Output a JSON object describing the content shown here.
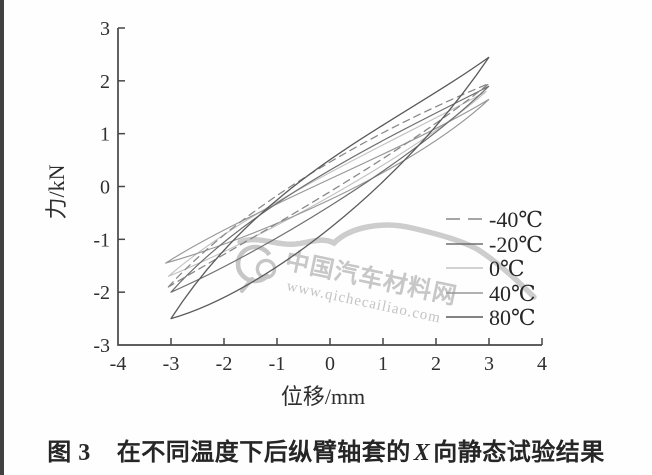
{
  "caption": {
    "figure_label": "图 3",
    "text_before_italic": "在不同温度下后纵臂轴套的",
    "italic_term": "X",
    "text_after_italic": "向静态试验结果"
  },
  "watermark": {
    "site_name": "中国汽车材料网",
    "site_url": "www.qichecailiao.com",
    "color": "#c9c9c9"
  },
  "chart_data": {
    "type": "line",
    "subtype": "hysteresis-loops",
    "title": "",
    "xlabel": "位移/mm",
    "ylabel": "力/kN",
    "xlim": [
      -4,
      4
    ],
    "ylim": [
      -3,
      3
    ],
    "x_ticks": [
      -4,
      -3,
      -2,
      -1,
      0,
      1,
      2,
      3,
      4
    ],
    "y_ticks": [
      3,
      2,
      1,
      0,
      -1,
      -2,
      -3
    ],
    "grid": false,
    "legend_position": "inside-lower-right",
    "axis_color": "#474747",
    "tick_text_color": "#2f2f2f",
    "series": [
      {
        "label": "-40℃",
        "line_style": "dashed",
        "color": "#878787",
        "width": 1.25,
        "max_force_kN": 1.95,
        "min_force_kN": -1.9,
        "displacement_range_mm": [
          -3.05,
          3.0
        ],
        "upper_bezier": [
          [
            -3.05,
            -1.9
          ],
          [
            -1.4,
            -0.1
          ],
          [
            1.3,
            1.25
          ],
          [
            3.0,
            1.95
          ]
        ],
        "lower_bezier": [
          [
            3.0,
            1.95
          ],
          [
            1.35,
            0.6
          ],
          [
            -1.45,
            -0.95
          ],
          [
            -3.05,
            -1.9
          ]
        ]
      },
      {
        "label": "-20℃",
        "line_style": "solid",
        "color": "#6e6e6e",
        "width": 1.2,
        "max_force_kN": 1.9,
        "min_force_kN": -2.0,
        "displacement_range_mm": [
          -3.0,
          3.0
        ],
        "upper_bezier": [
          [
            -3.0,
            -2.0
          ],
          [
            -1.45,
            -0.25
          ],
          [
            1.35,
            1.05
          ],
          [
            3.0,
            1.9
          ]
        ],
        "lower_bezier": [
          [
            3.0,
            1.9
          ],
          [
            1.4,
            0.35
          ],
          [
            -1.4,
            -1.3
          ],
          [
            -3.0,
            -2.0
          ]
        ]
      },
      {
        "label": "0℃",
        "line_style": "solid",
        "color": "#c3c3c3",
        "width": 1.15,
        "max_force_kN": 1.8,
        "min_force_kN": -1.7,
        "displacement_range_mm": [
          -3.05,
          2.95
        ],
        "upper_bezier": [
          [
            -3.05,
            -1.7
          ],
          [
            -1.5,
            -0.35
          ],
          [
            1.4,
            0.95
          ],
          [
            2.95,
            1.8
          ]
        ],
        "lower_bezier": [
          [
            2.95,
            1.8
          ],
          [
            1.45,
            0.5
          ],
          [
            -1.45,
            -1.05
          ],
          [
            -3.05,
            -1.7
          ]
        ]
      },
      {
        "label": "40℃",
        "line_style": "solid",
        "color": "#979797",
        "width": 1.15,
        "max_force_kN": 1.65,
        "min_force_kN": -1.45,
        "displacement_range_mm": [
          -3.1,
          3.0
        ],
        "upper_bezier": [
          [
            -3.1,
            -1.45
          ],
          [
            -1.55,
            -0.45
          ],
          [
            1.45,
            0.7
          ],
          [
            3.0,
            1.65
          ]
        ],
        "lower_bezier": [
          [
            3.0,
            1.65
          ],
          [
            1.5,
            0.25
          ],
          [
            -1.5,
            -1.0
          ],
          [
            -3.1,
            -1.45
          ]
        ]
      },
      {
        "label": "80℃",
        "line_style": "solid",
        "color": "#5a5a5a",
        "width": 1.3,
        "max_force_kN": 2.45,
        "min_force_kN": -2.5,
        "displacement_range_mm": [
          -3.0,
          3.0
        ],
        "upper_bezier": [
          [
            -3.0,
            -2.5
          ],
          [
            -1.3,
            0.15
          ],
          [
            1.2,
            1.15
          ],
          [
            3.0,
            2.45
          ]
        ],
        "lower_bezier": [
          [
            3.0,
            2.45
          ],
          [
            1.35,
            0.0
          ],
          [
            -1.25,
            -2.0
          ],
          [
            -3.0,
            -2.5
          ]
        ]
      }
    ]
  }
}
